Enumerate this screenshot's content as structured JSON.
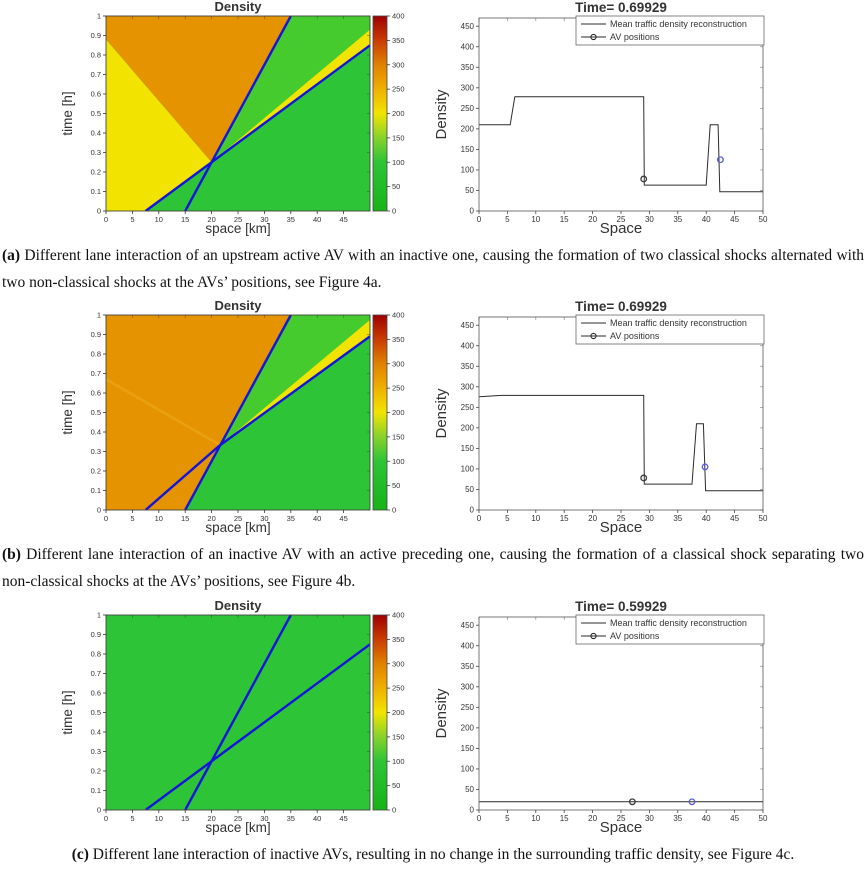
{
  "page": {
    "background": "#ffffff"
  },
  "colors": {
    "trajectory_blue": "#1414dd",
    "series_line": "#2b2b2b",
    "av_marker_dark": "#3a3a3a",
    "av_marker_blue": "#5a5ae0",
    "density_green": "#2ec437",
    "density_green_light": "#46cb2e",
    "density_yellow": "#f2e400",
    "density_orange": "#e59400"
  },
  "captions": {
    "a": {
      "tag": "(a)",
      "text": "Different lane interaction of an upstream active AV with an inactive one, causing the formation of two classical shocks alternated with two non-classical shocks at the AVs’ positions, see Figure 4a."
    },
    "b": {
      "tag": "(b)",
      "text": "Different lane interaction of an inactive AV with an active preceding one, causing the formation of a classical shock separating two non-classical shocks at the AVs’ positions, see Figure 4b."
    },
    "c": {
      "tag": "(c)",
      "text": "Different lane interaction of inactive AVs, resulting in no change in the surrounding traffic density, see Figure 4c."
    }
  },
  "chart_data": [
    {
      "type": "heatmap",
      "panel": "a",
      "side": "left",
      "title": "Density",
      "xlabel": "space [km]",
      "ylabel": "time [h]",
      "xlim": [
        0,
        50
      ],
      "ylim": [
        0,
        1
      ],
      "xticks": [
        0,
        5,
        10,
        15,
        20,
        25,
        30,
        35,
        40,
        45
      ],
      "yticks": [
        0,
        0.1,
        0.2,
        0.3,
        0.4,
        0.5,
        0.6,
        0.7,
        0.8,
        0.9,
        1
      ],
      "colorbar": {
        "min": 0,
        "max": 400,
        "ticks": [
          0,
          50,
          100,
          150,
          200,
          250,
          300,
          350,
          400
        ],
        "stops": [
          [
            0,
            "#17b317"
          ],
          [
            0.25,
            "#2ec437"
          ],
          [
            0.38,
            "#8ad32a"
          ],
          [
            0.5,
            "#f2e400"
          ],
          [
            0.63,
            "#efae00"
          ],
          [
            0.75,
            "#e08200"
          ],
          [
            0.88,
            "#c83a00"
          ],
          [
            1,
            "#9e0000"
          ]
        ]
      },
      "regions": [
        {
          "name": "background-density",
          "color": "#2ec437",
          "points": [
            [
              0,
              0
            ],
            [
              50,
              0
            ],
            [
              50,
              1
            ],
            [
              0,
              1
            ]
          ]
        },
        {
          "name": "wedge-light-green",
          "color": "#46cb2e",
          "points": [
            [
              20,
              0.25
            ],
            [
              35,
              1
            ],
            [
              50,
              1
            ],
            [
              50,
              0.85
            ]
          ]
        },
        {
          "name": "yellow-band",
          "color": "#f2e400",
          "points": [
            [
              20,
              0.25
            ],
            [
              50,
              0.85
            ],
            [
              50,
              0.93
            ]
          ]
        },
        {
          "name": "left-yellow-region",
          "color": "#f2e400",
          "points": [
            [
              0,
              0
            ],
            [
              7.5,
              0
            ],
            [
              20,
              0.25
            ],
            [
              0,
              0.88
            ]
          ]
        },
        {
          "name": "orange-region",
          "color": "#e59400",
          "points": [
            [
              0,
              0.88
            ],
            [
              20,
              0.25
            ],
            [
              35,
              1
            ],
            [
              0,
              1
            ]
          ]
        }
      ],
      "lines": [
        {
          "name": "av-trajectory-steep",
          "color": "#1414dd",
          "width": 2.4,
          "points": [
            [
              15,
              0
            ],
            [
              35,
              1
            ]
          ]
        },
        {
          "name": "av-trajectory-shallow",
          "color": "#1414dd",
          "width": 2.4,
          "points": [
            [
              7.5,
              0
            ],
            [
              50,
              0.85
            ]
          ]
        }
      ]
    },
    {
      "type": "line",
      "panel": "a",
      "side": "right",
      "title": "Time= 0.69929",
      "xlabel": "Space",
      "ylabel": "Density",
      "xlim": [
        0,
        50
      ],
      "ylim": [
        0,
        470
      ],
      "xticks": [
        0,
        5,
        10,
        15,
        20,
        25,
        30,
        35,
        40,
        45,
        50
      ],
      "yticks": [
        0,
        50,
        100,
        150,
        200,
        250,
        300,
        350,
        400,
        450
      ],
      "legend": [
        "Mean traffic density reconstruction",
        "AV positions"
      ],
      "series": {
        "name": "Mean traffic density reconstruction",
        "points": [
          [
            0,
            210
          ],
          [
            5.5,
            210
          ],
          [
            6.3,
            278
          ],
          [
            29,
            278
          ],
          [
            29.1,
            63
          ],
          [
            40,
            63
          ],
          [
            40.7,
            210
          ],
          [
            42.1,
            210
          ],
          [
            42.4,
            47
          ],
          [
            50,
            47
          ]
        ]
      },
      "av_markers": [
        {
          "x": 29,
          "y": 78,
          "color": "#3a3a3a"
        },
        {
          "x": 42.5,
          "y": 125,
          "color": "#5a5ae0"
        }
      ]
    },
    {
      "type": "heatmap",
      "panel": "b",
      "side": "left",
      "title": "Density",
      "xlabel": "space [km]",
      "ylabel": "time [h]",
      "xlim": [
        0,
        50
      ],
      "ylim": [
        0,
        1
      ],
      "xticks": [
        0,
        5,
        10,
        15,
        20,
        25,
        30,
        35,
        40,
        45
      ],
      "yticks": [
        0,
        0.1,
        0.2,
        0.3,
        0.4,
        0.5,
        0.6,
        0.7,
        0.8,
        0.9,
        1
      ],
      "colorbar": {
        "min": 0,
        "max": 400,
        "ticks": [
          0,
          50,
          100,
          150,
          200,
          250,
          300,
          350,
          400
        ],
        "stops": [
          [
            0,
            "#17b317"
          ],
          [
            0.25,
            "#2ec437"
          ],
          [
            0.38,
            "#8ad32a"
          ],
          [
            0.5,
            "#f2e400"
          ],
          [
            0.63,
            "#efae00"
          ],
          [
            0.75,
            "#e08200"
          ],
          [
            0.88,
            "#c83a00"
          ],
          [
            1,
            "#9e0000"
          ]
        ]
      },
      "regions": [
        {
          "name": "background-density",
          "color": "#2ec437",
          "points": [
            [
              0,
              0
            ],
            [
              50,
              0
            ],
            [
              50,
              1
            ],
            [
              0,
              1
            ]
          ]
        },
        {
          "name": "wedge-light-green",
          "color": "#46cb2e",
          "points": [
            [
              21.5,
              0.33
            ],
            [
              35,
              1
            ],
            [
              50,
              1
            ],
            [
              50,
              0.89
            ]
          ]
        },
        {
          "name": "yellow-band",
          "color": "#f2e400",
          "points": [
            [
              21.5,
              0.33
            ],
            [
              50,
              0.89
            ],
            [
              50,
              0.975
            ]
          ]
        },
        {
          "name": "orange-region",
          "color": "#e59400",
          "points": [
            [
              0,
              0
            ],
            [
              15,
              0
            ],
            [
              35,
              1
            ],
            [
              0,
              1
            ]
          ]
        }
      ],
      "lines": [
        {
          "name": "rarefaction-ray",
          "color": "#f2b52a",
          "width": 2.5,
          "opacity": 0.4,
          "points": [
            [
              21.5,
              0.335
            ],
            [
              0,
              0.67
            ]
          ]
        },
        {
          "name": "av-trajectory-steep",
          "color": "#1414dd",
          "width": 2.4,
          "points": [
            [
              15,
              0
            ],
            [
              35,
              1
            ]
          ]
        },
        {
          "name": "av-trajectory-shallow",
          "color": "#1414dd",
          "width": 2.4,
          "points": [
            [
              7.5,
              0
            ],
            [
              21.5,
              0.33
            ],
            [
              50,
              0.89
            ]
          ]
        }
      ]
    },
    {
      "type": "line",
      "panel": "b",
      "side": "right",
      "title": "Time= 0.69929",
      "xlabel": "Space",
      "ylabel": "Density",
      "xlim": [
        0,
        50
      ],
      "ylim": [
        0,
        470
      ],
      "xticks": [
        0,
        5,
        10,
        15,
        20,
        25,
        30,
        35,
        40,
        45,
        50
      ],
      "yticks": [
        0,
        50,
        100,
        150,
        200,
        250,
        300,
        350,
        400,
        450
      ],
      "legend": [
        "Mean traffic density reconstruction",
        "AV positions"
      ],
      "series": {
        "name": "Mean traffic density reconstruction",
        "points": [
          [
            0,
            276
          ],
          [
            4,
            279
          ],
          [
            29,
            279
          ],
          [
            29.1,
            63
          ],
          [
            37.5,
            63
          ],
          [
            38.3,
            210
          ],
          [
            39.5,
            210
          ],
          [
            39.9,
            47
          ],
          [
            50,
            47
          ]
        ]
      },
      "av_markers": [
        {
          "x": 29,
          "y": 78,
          "color": "#3a3a3a"
        },
        {
          "x": 39.8,
          "y": 105,
          "color": "#5a5ae0"
        }
      ]
    },
    {
      "type": "heatmap",
      "panel": "c",
      "side": "left",
      "title": "Density",
      "xlabel": "space [km]",
      "ylabel": "time [h]",
      "xlim": [
        0,
        50
      ],
      "ylim": [
        0,
        1
      ],
      "xticks": [
        0,
        5,
        10,
        15,
        20,
        25,
        30,
        35,
        40,
        45
      ],
      "yticks": [
        0,
        0.1,
        0.2,
        0.3,
        0.4,
        0.5,
        0.6,
        0.7,
        0.8,
        0.9,
        1
      ],
      "colorbar": {
        "min": 0,
        "max": 400,
        "ticks": [
          0,
          50,
          100,
          150,
          200,
          250,
          300,
          350,
          400
        ],
        "stops": [
          [
            0,
            "#17b317"
          ],
          [
            0.25,
            "#2ec437"
          ],
          [
            0.38,
            "#8ad32a"
          ],
          [
            0.5,
            "#f2e400"
          ],
          [
            0.63,
            "#efae00"
          ],
          [
            0.75,
            "#e08200"
          ],
          [
            0.88,
            "#c83a00"
          ],
          [
            1,
            "#9e0000"
          ]
        ]
      },
      "regions": [
        {
          "name": "background-density",
          "color": "#2ec437",
          "points": [
            [
              0,
              0
            ],
            [
              50,
              0
            ],
            [
              50,
              1
            ],
            [
              0,
              1
            ]
          ]
        }
      ],
      "lines": [
        {
          "name": "av-trajectory-steep",
          "color": "#1414dd",
          "width": 2.4,
          "points": [
            [
              15,
              0
            ],
            [
              35,
              1
            ]
          ]
        },
        {
          "name": "av-trajectory-shallow",
          "color": "#1414dd",
          "width": 2.4,
          "points": [
            [
              7.5,
              0
            ],
            [
              50,
              0.85
            ]
          ]
        }
      ]
    },
    {
      "type": "line",
      "panel": "c",
      "side": "right",
      "title": "Time= 0.59929",
      "xlabel": "Space",
      "ylabel": "Density",
      "xlim": [
        0,
        50
      ],
      "ylim": [
        0,
        470
      ],
      "xticks": [
        0,
        5,
        10,
        15,
        20,
        25,
        30,
        35,
        40,
        45,
        50
      ],
      "yticks": [
        0,
        50,
        100,
        150,
        200,
        250,
        300,
        350,
        400,
        450
      ],
      "legend": [
        "Mean traffic density reconstruction",
        "AV positions"
      ],
      "series": {
        "name": "Mean traffic density reconstruction",
        "points": [
          [
            0,
            20
          ],
          [
            50,
            20
          ]
        ]
      },
      "av_markers": [
        {
          "x": 27,
          "y": 20,
          "color": "#3a3a3a"
        },
        {
          "x": 37.5,
          "y": 20,
          "color": "#5a5ae0"
        }
      ]
    }
  ]
}
